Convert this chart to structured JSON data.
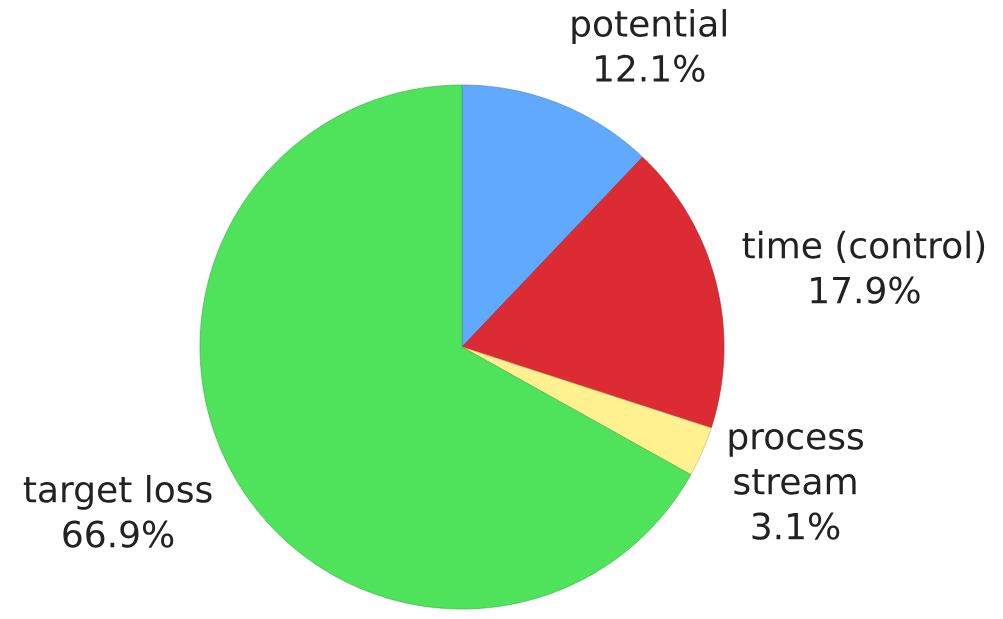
{
  "chart_data": {
    "type": "pie",
    "categories": [
      "potential",
      "time (control)",
      "process stream",
      "target loss"
    ],
    "values": [
      12.1,
      17.9,
      3.1,
      66.9
    ],
    "colors": [
      "#60a9ff",
      "#dc2b33",
      "#fff18f",
      "#4fe35b"
    ],
    "value_labels": [
      "12.1%",
      "17.9%",
      "3.1%",
      "66.9%"
    ]
  }
}
